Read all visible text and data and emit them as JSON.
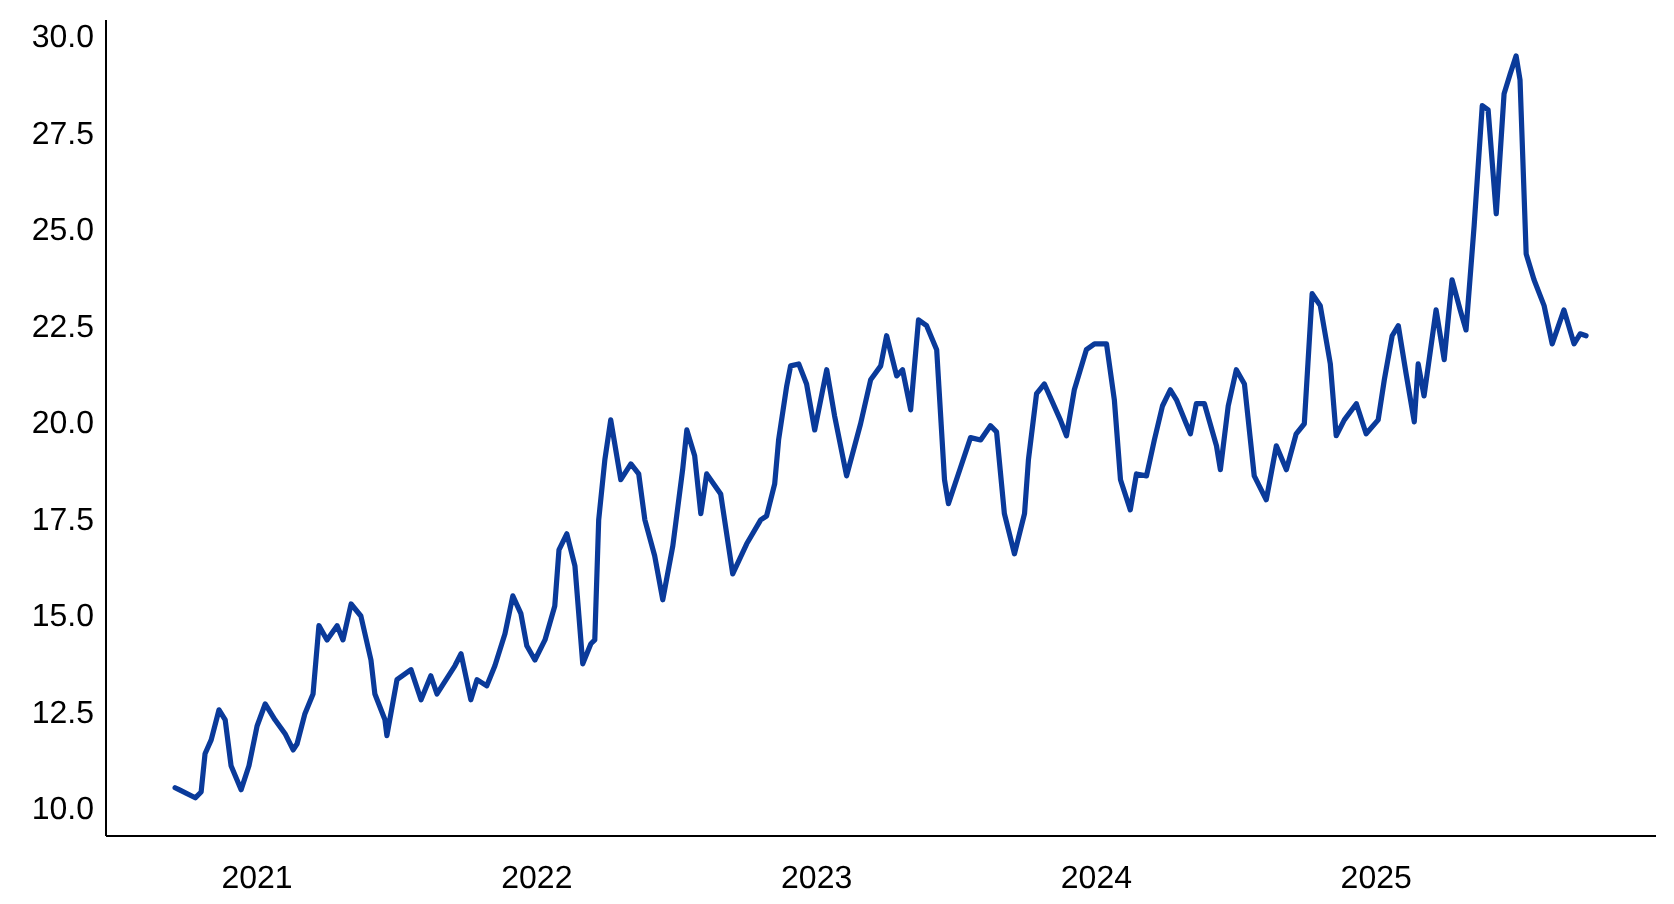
{
  "chart_data": {
    "type": "line",
    "xlim": [
      2020.46,
      2026.0
    ],
    "ylim": [
      9.27,
      30.41
    ],
    "xticks": [
      2021,
      2022,
      2023,
      2024,
      2025
    ],
    "yticks": [
      {
        "value": 10,
        "label": "10.0"
      },
      {
        "value": 12.5,
        "label": "12.5"
      },
      {
        "value": 15,
        "label": "15.0"
      },
      {
        "value": 17.5,
        "label": "17.5"
      },
      {
        "value": 20,
        "label": "20.0"
      },
      {
        "value": 22.5,
        "label": "22.5"
      },
      {
        "value": 25,
        "label": "25.0"
      },
      {
        "value": 27.5,
        "label": "27.5"
      },
      {
        "value": 30,
        "label": "30.0"
      }
    ],
    "grid": false,
    "line_style": "solid",
    "series": [
      {
        "color": "#0a3a9a",
        "x": [
          2020.707,
          2020.721,
          2020.779,
          2020.8,
          2020.814,
          2020.836,
          2020.864,
          2020.886,
          2020.907,
          2020.943,
          2020.971,
          2021.0,
          2021.029,
          2021.064,
          2021.1,
          2021.129,
          2021.143,
          2021.171,
          2021.2,
          2021.221,
          2021.25,
          2021.286,
          2021.307,
          2021.336,
          2021.371,
          2021.407,
          2021.421,
          2021.457,
          2021.464,
          2021.5,
          2021.55,
          2021.586,
          2021.621,
          2021.643,
          2021.707,
          2021.729,
          2021.764,
          2021.786,
          2021.821,
          2021.85,
          2021.886,
          2021.914,
          2021.943,
          2021.964,
          2021.993,
          2022.029,
          2022.064,
          2022.079,
          2022.107,
          2022.136,
          2022.164,
          2022.193,
          2022.207,
          2022.221,
          2022.243,
          2022.264,
          2022.3,
          2022.336,
          2022.364,
          2022.386,
          2022.421,
          2022.45,
          2022.486,
          2022.521,
          2022.536,
          2022.564,
          2022.586,
          2022.607,
          2022.657,
          2022.7,
          2022.75,
          2022.8,
          2022.821,
          2022.85,
          2022.864,
          2022.893,
          2022.907,
          2022.936,
          2022.964,
          2022.993,
          2023.036,
          2023.064,
          2023.107,
          2023.157,
          2023.193,
          2023.229,
          2023.25,
          2023.286,
          2023.307,
          2023.336,
          2023.364,
          2023.393,
          2023.429,
          2023.457,
          2023.471,
          2023.514,
          2023.55,
          2023.586,
          2023.621,
          2023.643,
          2023.671,
          2023.707,
          2023.743,
          2023.757,
          2023.786,
          2023.814,
          2023.871,
          2023.893,
          2023.921,
          2023.964,
          2023.993,
          2024.036,
          2024.064,
          2024.086,
          2024.121,
          2024.143,
          2024.179,
          2024.207,
          2024.236,
          2024.264,
          2024.286,
          2024.321,
          2024.336,
          2024.357,
          2024.386,
          2024.429,
          2024.443,
          2024.471,
          2024.5,
          2024.529,
          2024.564,
          2024.607,
          2024.643,
          2024.679,
          2024.714,
          2024.743,
          2024.771,
          2024.8,
          2024.836,
          2024.857,
          2024.886,
          2024.929,
          2024.964,
          2025.007,
          2025.029,
          2025.057,
          2025.079,
          2025.107,
          2025.136,
          2025.15,
          2025.171,
          2025.214,
          2025.243,
          2025.271,
          2025.3,
          2025.321,
          2025.35,
          2025.379,
          2025.4,
          2025.429,
          2025.457,
          2025.479,
          2025.5,
          2025.514,
          2025.536,
          2025.564,
          2025.6,
          2025.629,
          2025.671,
          2025.707,
          2025.729,
          2025.75
        ],
        "values": [
          10.52,
          10.47,
          10.26,
          10.41,
          11.4,
          11.76,
          12.54,
          12.28,
          11.09,
          10.47,
          11.09,
          12.12,
          12.69,
          12.28,
          11.92,
          11.5,
          11.66,
          12.44,
          12.95,
          14.72,
          14.35,
          14.72,
          14.35,
          15.28,
          14.97,
          13.83,
          12.95,
          12.28,
          11.87,
          13.32,
          13.58,
          12.8,
          13.42,
          12.95,
          13.68,
          13.99,
          12.8,
          13.32,
          13.16,
          13.68,
          14.51,
          15.49,
          15.03,
          14.2,
          13.83,
          14.35,
          15.23,
          16.68,
          17.1,
          16.27,
          13.73,
          14.25,
          14.35,
          17.46,
          19.02,
          20.05,
          18.5,
          18.91,
          18.65,
          17.46,
          16.53,
          15.39,
          16.79,
          18.76,
          19.79,
          19.12,
          17.62,
          18.65,
          18.13,
          16.06,
          16.84,
          17.46,
          17.56,
          18.39,
          19.53,
          20.93,
          21.45,
          21.5,
          20.98,
          19.79,
          21.35,
          20.16,
          18.6,
          19.95,
          21.09,
          21.45,
          22.23,
          21.19,
          21.35,
          20.31,
          22.64,
          22.49,
          21.87,
          18.5,
          17.88,
          18.81,
          19.59,
          19.53,
          19.9,
          19.74,
          17.62,
          16.58,
          17.62,
          19.02,
          20.73,
          20.98,
          20.05,
          19.64,
          20.83,
          21.87,
          22.02,
          22.02,
          20.57,
          18.5,
          17.72,
          18.65,
          18.6,
          19.53,
          20.41,
          20.83,
          20.57,
          19.95,
          19.69,
          20.47,
          20.47,
          19.38,
          18.76,
          20.41,
          21.35,
          20.98,
          18.6,
          17.98,
          19.38,
          18.76,
          19.69,
          19.95,
          23.32,
          23.01,
          21.5,
          19.64,
          20.05,
          20.47,
          19.69,
          20.05,
          21.09,
          22.23,
          22.49,
          21.24,
          20.0,
          21.5,
          20.67,
          22.9,
          21.61,
          23.68,
          22.9,
          22.38,
          25.08,
          28.19,
          28.08,
          25.39,
          28.5,
          29.02,
          29.48,
          28.86,
          24.35,
          23.68,
          23.01,
          22.02,
          22.9,
          22.02,
          22.28,
          22.23
        ]
      }
    ]
  }
}
